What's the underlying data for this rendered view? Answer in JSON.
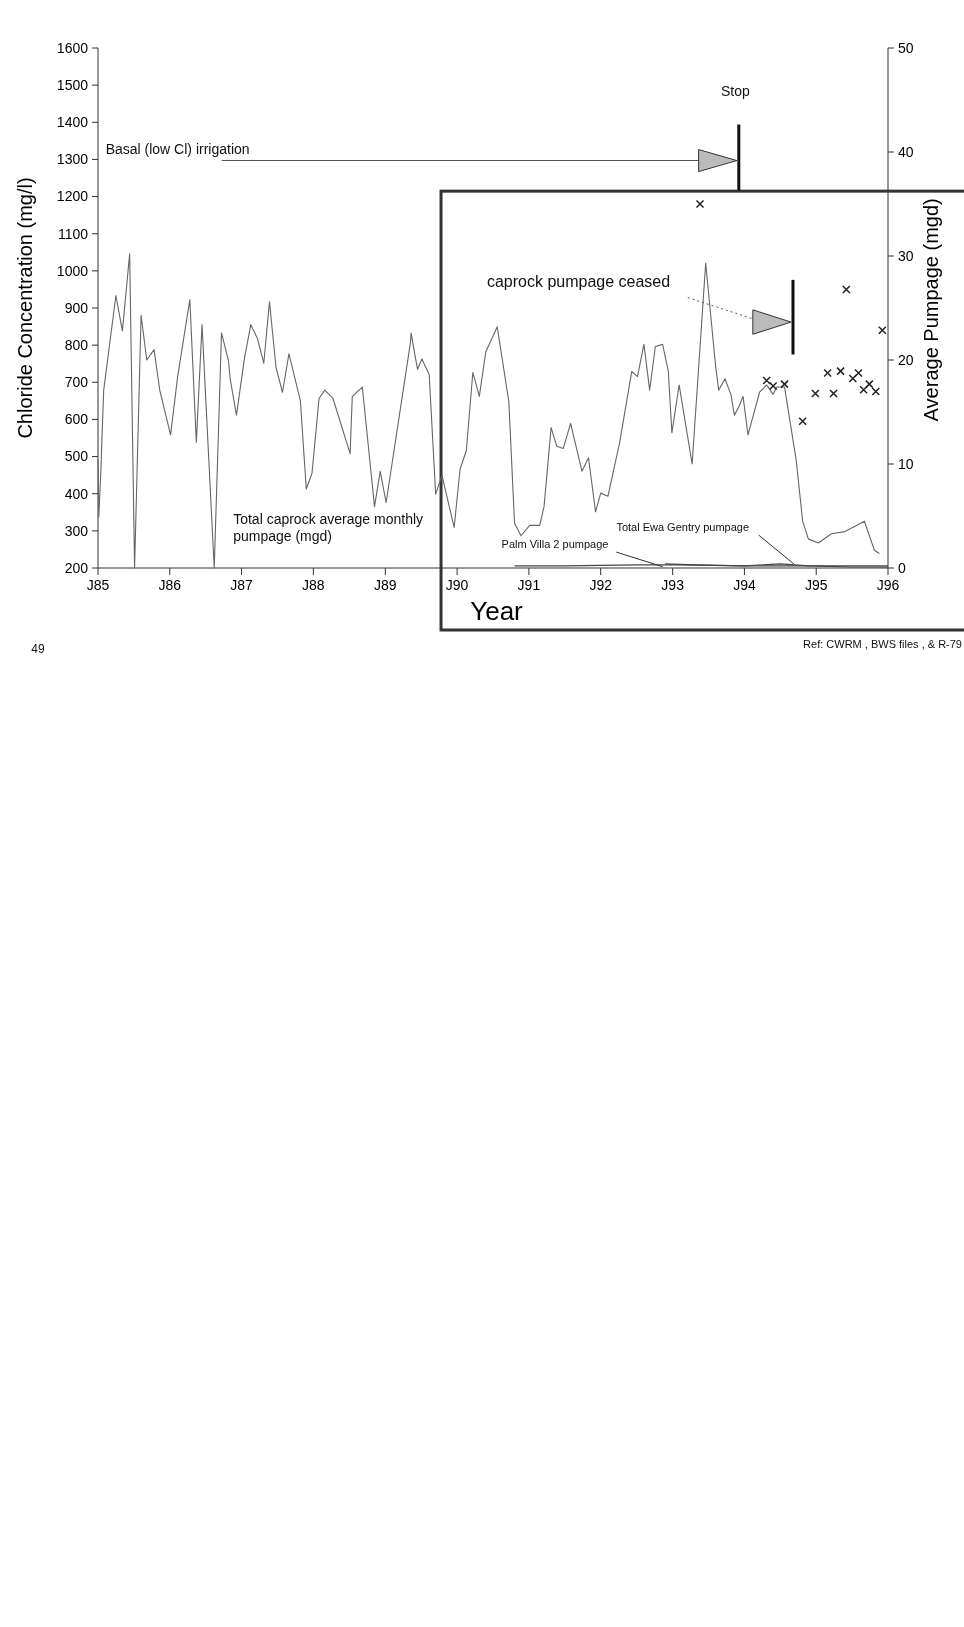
{
  "chart_data": {
    "type": "line",
    "xlabel": "Year",
    "ylabel": "Chloride Concentration (mg/l)",
    "y2label": "Average Pumpage (mgd)",
    "xlim": [
      "1985-01-01",
      "1996-01-01"
    ],
    "xticks": [
      {
        "value": "1985-01-01",
        "label": "J85"
      },
      {
        "value": "1986-01-01",
        "label": "J86"
      },
      {
        "value": "1987-01-01",
        "label": "J87"
      },
      {
        "value": "1988-01-01",
        "label": "J88"
      },
      {
        "value": "1989-01-01",
        "label": "J89"
      },
      {
        "value": "1990-01-01",
        "label": "J90"
      },
      {
        "value": "1991-01-01",
        "label": "J91"
      },
      {
        "value": "1992-01-01",
        "label": "J92"
      },
      {
        "value": "1993-01-01",
        "label": "J93"
      },
      {
        "value": "1994-01-01",
        "label": "J94"
      },
      {
        "value": "1995-01-01",
        "label": "J95"
      },
      {
        "value": "1996-01-01",
        "label": "J96"
      }
    ],
    "ylim": [
      200,
      1600
    ],
    "yticks": [
      200,
      300,
      400,
      500,
      600,
      700,
      800,
      900,
      1000,
      1100,
      1200,
      1300,
      1400,
      1500,
      1600
    ],
    "y2lim": [
      0,
      50
    ],
    "y2ticks": [
      0,
      10,
      20,
      30,
      40,
      50
    ],
    "series": [
      {
        "name": "Total caprock average monthly pumpage (mgd)",
        "axis": "y2",
        "color": "#666666",
        "x": [
          "1985-01-01",
          "1985-01-05",
          "1985-01-16",
          "1985-01-19",
          "1985-01-30",
          "1985-04-02",
          "1985-05-05",
          "1985-06-11",
          "1985-07-06",
          "1985-08-08",
          "1985-09-06",
          "1985-10-13",
          "1985-11-11",
          "1986-01-05",
          "1986-02-10",
          "1986-04-13",
          "1986-05-16",
          "1986-06-14",
          "1986-08-15",
          "1986-09-21",
          "1986-10-27",
          "1986-11-04",
          "1986-12-06",
          "1987-01-16",
          "1987-02-17",
          "1987-03-22",
          "1987-04-24",
          "1987-05-23",
          "1987-06-25",
          "1987-07-28",
          "1987-08-30",
          "1987-10-27",
          "1987-11-26",
          "1987-12-25",
          "1988-01-30",
          "1988-02-28",
          "1988-04-10",
          "1988-07-06",
          "1988-07-17",
          "1988-09-06",
          "1988-11-07",
          "1988-12-06",
          "1989-01-05",
          "1989-05-09",
          "1989-05-12",
          "1989-06-03",
          "1989-06-14",
          "1989-07-06",
          "1989-08-12",
          "1989-09-14",
          "1989-10-16",
          "1989-12-17",
          "1990-01-16",
          "1990-02-17",
          "1990-03-22",
          "1990-04-24",
          "1990-05-27",
          "1990-07-24",
          "1990-09-21",
          "1990-10-20",
          "1990-11-22",
          "1991-01-05",
          "1991-02-25",
          "1991-03-19",
          "1991-04-24",
          "1991-05-23",
          "1991-06-25",
          "1991-08-01",
          "1991-09-28",
          "1991-10-31",
          "1991-12-06",
          "1992-01-01",
          "1992-02-07",
          "1992-04-06",
          "1992-06-07",
          "1992-07-06",
          "1992-08-08",
          "1992-09-06",
          "1992-10-05",
          "1992-11-11",
          "1992-12-10",
          "1992-12-28",
          "1993-02-03",
          "1993-04-10",
          "1993-06-18",
          "1993-08-08",
          "1993-08-23",
          "1993-09-24",
          "1993-10-24",
          "1993-11-11",
          "1993-12-06",
          "1993-12-25",
          "1994-01-19",
          "1994-03-19",
          "1994-04-24",
          "1994-05-27",
          "1994-06-14",
          "1994-07-24",
          "1994-09-21",
          "1994-10-24",
          "1994-11-22",
          "1995-01-12",
          "1995-03-19",
          "1995-05-27",
          "1995-09-03",
          "1995-10-24",
          "1995-11-18"
        ],
        "values": [
          10.4,
          4.9,
          9.5,
          11.3,
          17.1,
          26.2,
          22.8,
          30.2,
          0,
          24.3,
          20.0,
          21.0,
          17.1,
          12.8,
          18.4,
          25.8,
          12.1,
          23.4,
          0,
          22.6,
          19.9,
          18.2,
          14.7,
          20.2,
          23.4,
          22.1,
          19.7,
          25.6,
          19.3,
          16.9,
          20.6,
          16.1,
          7.6,
          9.1,
          16.3,
          17.1,
          16.3,
          11.0,
          16.5,
          17.4,
          5.9,
          9.3,
          6.3,
          21.7,
          22.6,
          20.2,
          19.1,
          20.1,
          18.6,
          7.1,
          8.9,
          3.9,
          9.5,
          11.3,
          18.8,
          16.5,
          20.8,
          23.2,
          16.0,
          4.3,
          3.1,
          4.1,
          4.1,
          5.9,
          13.5,
          11.7,
          11.5,
          13.9,
          9.3,
          10.6,
          5.4,
          7.2,
          6.9,
          12.0,
          18.9,
          18.4,
          21.5,
          17.1,
          21.3,
          21.5,
          18.9,
          13.0,
          17.6,
          10.0,
          29.3,
          19.3,
          17.1,
          18.2,
          16.7,
          14.7,
          15.6,
          16.5,
          12.8,
          16.9,
          17.6,
          16.7,
          17.4,
          17.4,
          10.4,
          4.5,
          2.8,
          2.4,
          3.3,
          3.5,
          4.5,
          1.7,
          1.4
        ]
      },
      {
        "name": "Palm Villa 2 pumpage",
        "axis": "y2",
        "color": "#444444",
        "x": [
          "1990-10-20",
          "1991-07-01",
          "1992-07-01",
          "1993-02-07",
          "1994-01-01",
          "1995-01-01",
          "1996-01-01"
        ],
        "values": [
          0.2,
          0.2,
          0.3,
          0.3,
          0.2,
          0.2,
          0.2
        ]
      },
      {
        "name": "Total Ewa Gentry pumpage",
        "axis": "y2",
        "color": "#444444",
        "x": [
          "1992-11-24",
          "1993-04-20",
          "1994-01-01",
          "1994-07-01",
          "1994-11-24",
          "1995-07-01",
          "1996-01-01"
        ],
        "values": [
          0.4,
          0.3,
          0.2,
          0.4,
          0.2,
          0.1,
          0.1
        ]
      },
      {
        "type": "scatter",
        "axis": "y",
        "marker": "cross",
        "color": "#222222",
        "x": [
          "1993-05-20",
          "1994-04-24",
          "1994-05-27",
          "1994-07-24",
          "1994-10-24",
          "1994-12-28",
          "1995-02-28",
          "1995-03-30",
          "1995-05-05",
          "1995-06-03",
          "1995-07-06",
          "1995-08-04",
          "1995-08-30",
          "1995-09-28",
          "1995-10-31",
          "1995-12-03"
        ],
        "values": [
          1180,
          705,
          690,
          695,
          595,
          670,
          725,
          670,
          730,
          950,
          710,
          725,
          680,
          695,
          675,
          840
        ]
      }
    ],
    "annotations": [
      "Basal (low Cl) irrigation",
      "Stop",
      "caprock pumpage ceased",
      "Ref:  CWRM , BWS files , & R-79",
      "49"
    ]
  }
}
